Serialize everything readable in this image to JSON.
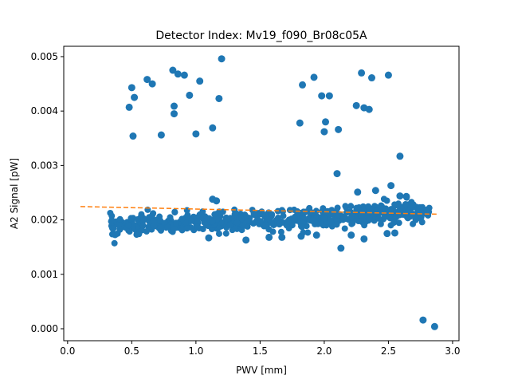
{
  "chart_data": {
    "type": "scatter",
    "title": "Detector Index: Mv19_f090_Br08c05A",
    "xlabel": "PWV [mm]",
    "ylabel": "A2 Signal [pW]",
    "xlim": [
      -0.03,
      3.05
    ],
    "ylim": [
      -0.00022,
      0.00519
    ],
    "xticks": [
      0.0,
      0.5,
      1.0,
      1.5,
      2.0,
      2.5,
      3.0
    ],
    "xtick_labels": [
      "0.0",
      "0.5",
      "1.0",
      "1.5",
      "2.0",
      "2.5",
      "3.0"
    ],
    "yticks": [
      0.0,
      0.001,
      0.002,
      0.003,
      0.004,
      0.005
    ],
    "ytick_labels": [
      "0.000",
      "0.001",
      "0.002",
      "0.003",
      "0.004",
      "0.005"
    ],
    "grid": false,
    "series": [
      {
        "name": "data",
        "color": "#1f77b4",
        "marker": "circle",
        "points": [
          [
            0.48,
            0.00407
          ],
          [
            0.5,
            0.00443
          ],
          [
            0.52,
            0.00425
          ],
          [
            0.51,
            0.00354
          ],
          [
            0.62,
            0.00458
          ],
          [
            0.66,
            0.0045
          ],
          [
            0.73,
            0.00356
          ],
          [
            0.82,
            0.00475
          ],
          [
            0.83,
            0.00409
          ],
          [
            0.83,
            0.00395
          ],
          [
            0.86,
            0.00468
          ],
          [
            0.91,
            0.00466
          ],
          [
            0.95,
            0.00429
          ],
          [
            1.0,
            0.00358
          ],
          [
            1.03,
            0.00455
          ],
          [
            1.13,
            0.00369
          ],
          [
            1.18,
            0.00423
          ],
          [
            1.2,
            0.00496
          ],
          [
            1.81,
            0.00378
          ],
          [
            1.83,
            0.00448
          ],
          [
            1.92,
            0.00462
          ],
          [
            1.98,
            0.00428
          ],
          [
            2.0,
            0.00362
          ],
          [
            2.01,
            0.0038
          ],
          [
            2.04,
            0.00428
          ],
          [
            2.11,
            0.00366
          ],
          [
            2.25,
            0.0041
          ],
          [
            2.29,
            0.0047
          ],
          [
            2.31,
            0.00406
          ],
          [
            2.35,
            0.00403
          ],
          [
            2.37,
            0.00461
          ],
          [
            2.5,
            0.00466
          ],
          [
            2.1,
            0.00285
          ],
          [
            2.59,
            0.00317
          ],
          [
            2.52,
            0.00263
          ],
          [
            2.26,
            0.00251
          ],
          [
            2.4,
            0.00254
          ],
          [
            2.59,
            0.00244
          ],
          [
            2.64,
            0.00243
          ],
          [
            1.13,
            0.00238
          ],
          [
            1.16,
            0.00235
          ],
          [
            2.77,
            0.00016
          ],
          [
            2.86,
            4e-05
          ],
          [
            1.1,
            0.00167
          ],
          [
            1.39,
            0.00163
          ],
          [
            1.57,
            0.00168
          ],
          [
            1.67,
            0.00168
          ],
          [
            2.13,
            0.00148
          ],
          [
            2.31,
            0.00165
          ],
          [
            2.49,
            0.00175
          ],
          [
            2.55,
            0.00176
          ],
          [
            1.82,
            0.0017
          ],
          [
            1.94,
            0.00172
          ],
          [
            2.21,
            0.00172
          ],
          [
            0.37,
            0.00173
          ]
        ]
      }
    ],
    "trend_line": {
      "name": "fit",
      "color": "#ff7f0e",
      "style": "dashed",
      "x": [
        0.1,
        2.88
      ],
      "y": [
        0.002245,
        0.002105
      ]
    },
    "cluster": {
      "description": "dense band of points",
      "x_range": [
        0.33,
        2.82
      ],
      "center_y_at_x0": 0.00185,
      "center_slope": 9.5e-05,
      "spread": 9e-05,
      "count": 620
    }
  }
}
